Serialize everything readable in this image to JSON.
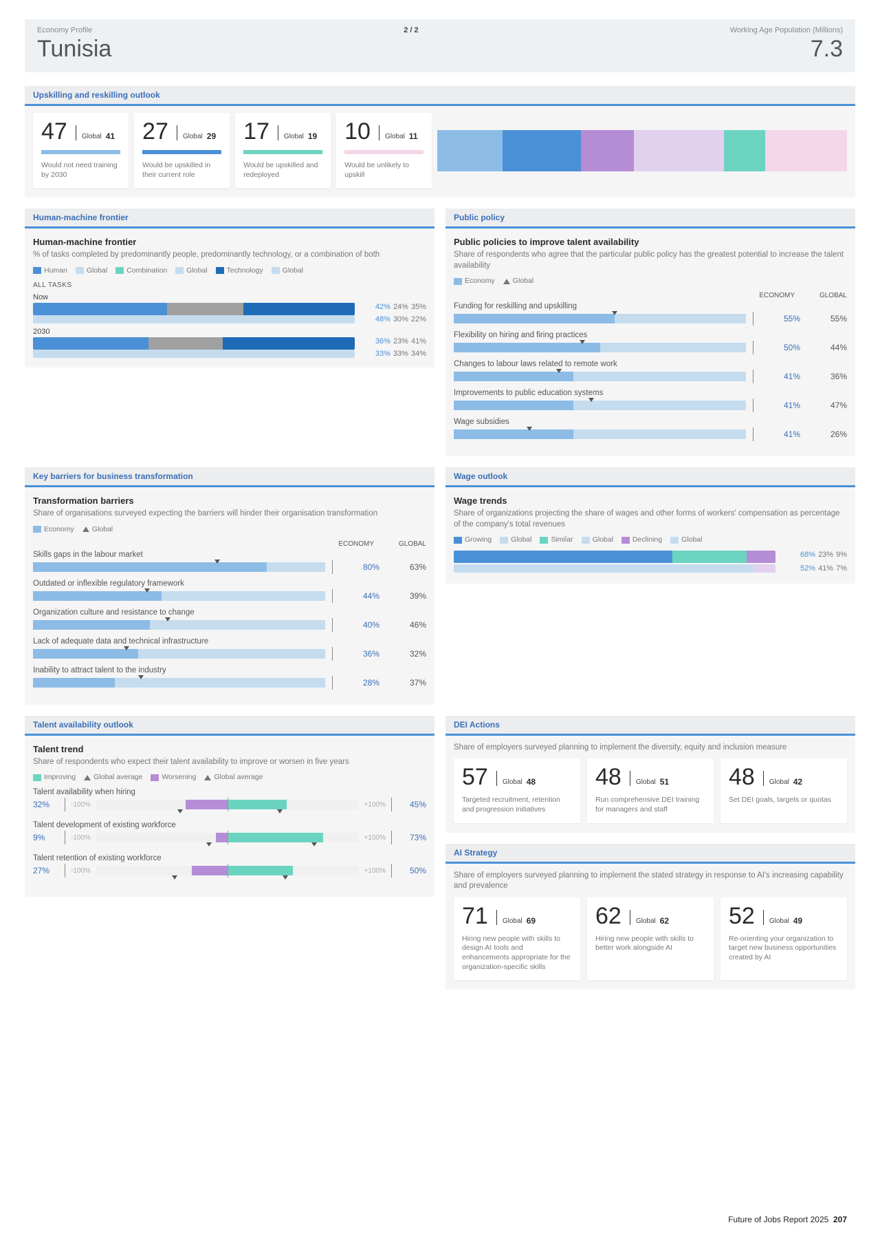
{
  "header": {
    "left_label": "Economy Profile",
    "page_indicator": "2 / 2",
    "right_label": "Working Age Population (Millions)",
    "country": "Tunisia",
    "population": "7.3"
  },
  "colors": {
    "blue_strong": "#1f6bb7",
    "blue_med": "#4a90d6",
    "blue_light": "#8cbce6",
    "blue_pale": "#c5dcef",
    "teal": "#6bd4c0",
    "purple": "#b58cd6",
    "purple_pale": "#e2d0ef",
    "pink_pale": "#f4d6e9",
    "gray": "#a0a0a0"
  },
  "upskill": {
    "title": "Upskilling and reskilling outlook",
    "cards": [
      {
        "value": "47",
        "global": "41",
        "desc": "Would not need training by 2030",
        "color": "#8cbce6"
      },
      {
        "value": "27",
        "global": "29",
        "desc": "Would be upskilled in their current role",
        "color": "#4a90d6"
      },
      {
        "value": "17",
        "global": "19",
        "desc": "Would be upskilled and redeployed",
        "color": "#6bd4c0"
      },
      {
        "value": "10",
        "global": "11",
        "desc": "Would be unlikely to upskill",
        "color": "#f4d6e9"
      }
    ],
    "strip_segments": [
      {
        "width": 16,
        "color": "#8cbce6"
      },
      {
        "width": 19,
        "color": "#4a90d6"
      },
      {
        "width": 13,
        "color": "#b58cd6"
      },
      {
        "width": 22,
        "color": "#e2d0ef"
      },
      {
        "width": 10,
        "color": "#6bd4c0"
      },
      {
        "width": 20,
        "color": "#f4d6e9"
      }
    ]
  },
  "hmf": {
    "title": "Human-machine frontier",
    "heading": "Human-machine frontier",
    "sub": "% of tasks completed by predominantly people, predominantly technology, or a combination of both",
    "legend": [
      "Human",
      "Global",
      "Combination",
      "Global",
      "Technology",
      "Global"
    ],
    "all_tasks_label": "ALL TASKS",
    "rows": [
      {
        "label": "Now",
        "economy": [
          42,
          24,
          35
        ],
        "global": [
          48,
          30,
          22
        ]
      },
      {
        "label": "2030",
        "economy": [
          36,
          23,
          41
        ],
        "global": [
          33,
          33,
          34
        ]
      }
    ]
  },
  "policy": {
    "title": "Public policy",
    "heading": "Public policies to improve talent availability",
    "sub": "Share of respondents who agree that the particular public policy has the greatest potential to increase the talent availability",
    "legend": [
      "Economy",
      "Global"
    ],
    "col_labels": [
      "ECONOMY",
      "GLOBAL"
    ],
    "items": [
      {
        "label": "Funding for reskilling and upskilling",
        "econ": 55,
        "glob": 55
      },
      {
        "label": "Flexibility on hiring and firing practices",
        "econ": 50,
        "glob": 44
      },
      {
        "label": "Changes to labour laws related to remote work",
        "econ": 41,
        "glob": 36
      },
      {
        "label": "Improvements to public education systems",
        "econ": 41,
        "glob": 47
      },
      {
        "label": "Wage subsidies",
        "econ": 41,
        "glob": 26
      }
    ]
  },
  "barriers": {
    "title": "Key barriers for business transformation",
    "heading": "Transformation barriers",
    "sub": "Share of organisations surveyed expecting the barriers will hinder their organisation transformation",
    "legend": [
      "Economy",
      "Global"
    ],
    "col_labels": [
      "ECONOMY",
      "GLOBAL"
    ],
    "items": [
      {
        "label": "Skills gaps in the labour market",
        "econ": 80,
        "glob": 63
      },
      {
        "label": "Outdated or inflexible regulatory framework",
        "econ": 44,
        "glob": 39
      },
      {
        "label": "Organization culture and resistance to change",
        "econ": 40,
        "glob": 46
      },
      {
        "label": "Lack of adequate data and technical infrastructure",
        "econ": 36,
        "glob": 32
      },
      {
        "label": "Inability to attract talent to the industry",
        "econ": 28,
        "glob": 37
      }
    ]
  },
  "wage": {
    "title": "Wage outlook",
    "heading": "Wage trends",
    "sub": "Share of organizations projecting the share of wages and other forms of workers' compensation as percentage of the company's total revenues",
    "legend": [
      "Growing",
      "Global",
      "Similar",
      "Global",
      "Declining",
      "Global"
    ],
    "rows": [
      {
        "economy": [
          68,
          23,
          9
        ],
        "colors_e": [
          "#4a90d6",
          "#6bd4c0",
          "#b58cd6"
        ]
      },
      {
        "economy": [
          52,
          41,
          7
        ],
        "is_global": true
      }
    ]
  },
  "talent": {
    "title": "Talent availability outlook",
    "heading": "Talent trend",
    "sub": "Share of respondents who expect their talent availability to improve or worsen in five years",
    "legend": [
      "Improving",
      "Global average",
      "Worsening",
      "Global average"
    ],
    "axis_neg": "-100%",
    "axis_pos": "+100%",
    "axis_end": "|",
    "items": [
      {
        "label": "Talent availability when hiring",
        "worse": 32,
        "better": 45,
        "g_worse": 36,
        "g_better": 40
      },
      {
        "label": "Talent development of existing workforce",
        "worse": 9,
        "better": 73,
        "g_worse": 14,
        "g_better": 66
      },
      {
        "label": "Talent retention of existing workforce",
        "worse": 27,
        "better": 50,
        "g_worse": 40,
        "g_better": 44
      }
    ]
  },
  "dei": {
    "title": "DEI Actions",
    "sub": "Share of employers surveyed planning to implement the diversity, equity and inclusion measure",
    "cards": [
      {
        "value": "57",
        "global": "48",
        "desc": "Targeted recruitment, retention and progression initiatives"
      },
      {
        "value": "48",
        "global": "51",
        "desc": "Run comprehensive DEI training for managers and staff"
      },
      {
        "value": "48",
        "global": "42",
        "desc": "Set DEI goals, targets or quotas"
      }
    ]
  },
  "ai": {
    "title": "AI Strategy",
    "sub": "Share of employers surveyed planning to implement the stated strategy in response to AI's increasing capability and prevalence",
    "cards": [
      {
        "value": "71",
        "global": "69",
        "desc": "Hiring new people with skills to design AI tools and enhancements appropriate for the organization-specific skills"
      },
      {
        "value": "62",
        "global": "62",
        "desc": "Hiring new people with skills to better work alongside AI"
      },
      {
        "value": "52",
        "global": "49",
        "desc": "Re-orienting your organization to target new business opportunities created by AI"
      }
    ]
  },
  "labels": {
    "global": "Global"
  },
  "footer": {
    "report": "Future of Jobs Report 2025",
    "page": "207"
  }
}
